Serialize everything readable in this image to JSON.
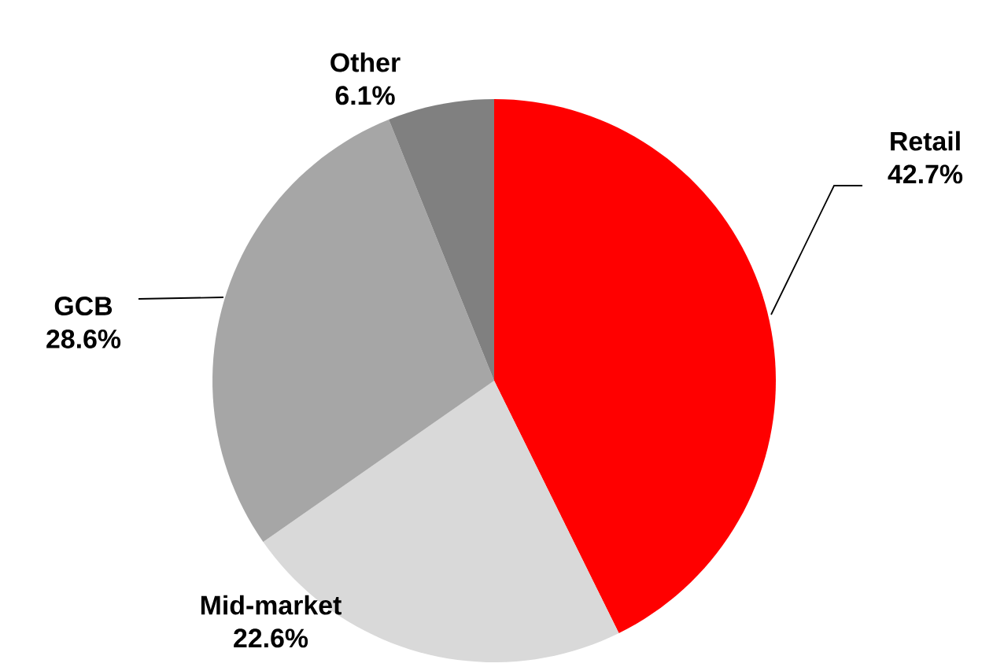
{
  "chart_data": {
    "type": "pie",
    "categories": [
      "Retail",
      "Mid-market",
      "GCB",
      "Other"
    ],
    "values": [
      42.7,
      22.6,
      28.6,
      6.1
    ],
    "value_labels": [
      "42.7%",
      "22.6%",
      "28.6%",
      "6.1%"
    ],
    "colors": [
      "#ff0000",
      "#d9d9d9",
      "#a6a6a6",
      "#808080"
    ]
  }
}
